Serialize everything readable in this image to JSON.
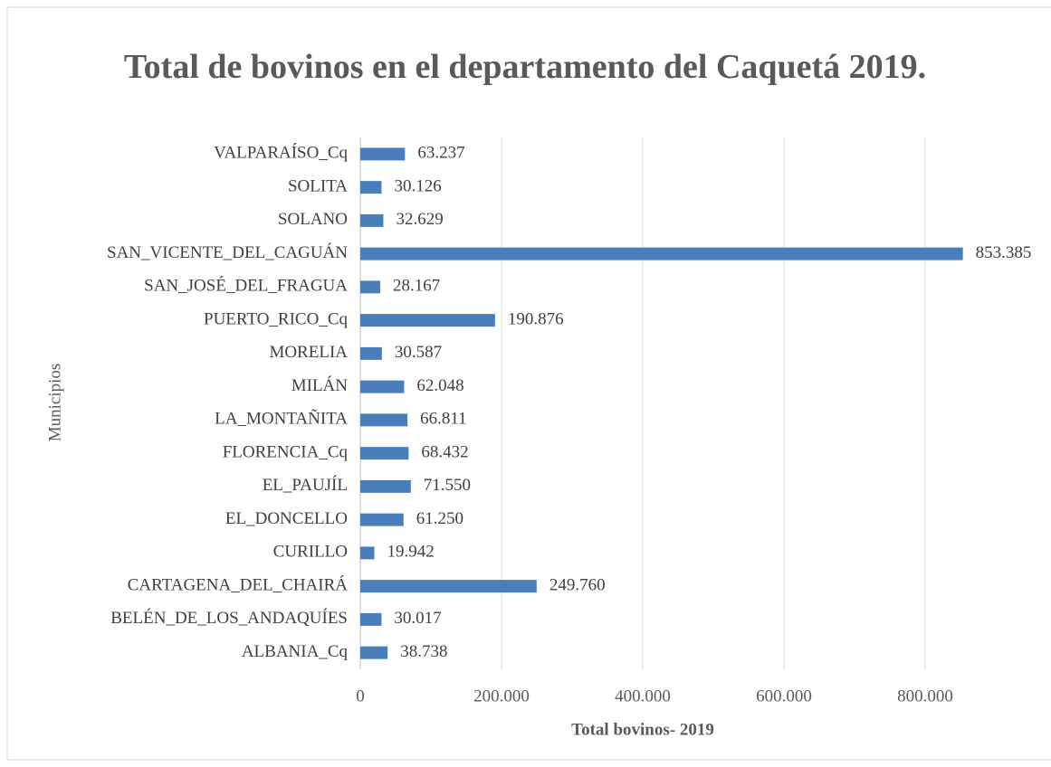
{
  "chart_data": {
    "type": "barh",
    "title": "Total de bovinos en el departamento del Caquetá 2019.",
    "xlabel": "Total bovinos- 2019",
    "ylabel": "Municipios",
    "categories": [
      "VALPARAÍSO_Cq",
      "SOLITA",
      "SOLANO",
      "SAN_VICENTE_DEL_CAGUÁN",
      "SAN_JOSÉ_DEL_FRAGUA",
      "PUERTO_RICO_Cq",
      "MORELIA",
      "MILÁN",
      "LA_MONTAÑITA",
      "FLORENCIA_Cq",
      "EL_PAUJÍL",
      "EL_DONCELLO",
      "CURILLO",
      "CARTAGENA_DEL_CHAIRÁ",
      "BELÉN_DE_LOS_ANDAQUÍES",
      "ALBANIA_Cq"
    ],
    "values": [
      63237,
      30126,
      32629,
      853385,
      28167,
      190876,
      30587,
      62048,
      66811,
      68432,
      71550,
      61250,
      19942,
      249760,
      30017,
      38738
    ],
    "value_labels": [
      "63.237",
      "30.126",
      "32.629",
      "853.385",
      "28.167",
      "190.876",
      "30.587",
      "62.048",
      "66.811",
      "68.432",
      "71.550",
      "61.250",
      "19.942",
      "249.760",
      "30.017",
      "38.738"
    ],
    "color": "#4a7ebb",
    "xlim": [
      0,
      900000
    ],
    "xticks": [
      0,
      {
        "value": 200000,
        "label": "200.000"
      },
      {
        "value": 400000,
        "label": "400.000"
      },
      {
        "value": 600000,
        "label": "600.000"
      },
      {
        "value": 800000,
        "label": "800.000"
      }
    ],
    "grid": true
  }
}
